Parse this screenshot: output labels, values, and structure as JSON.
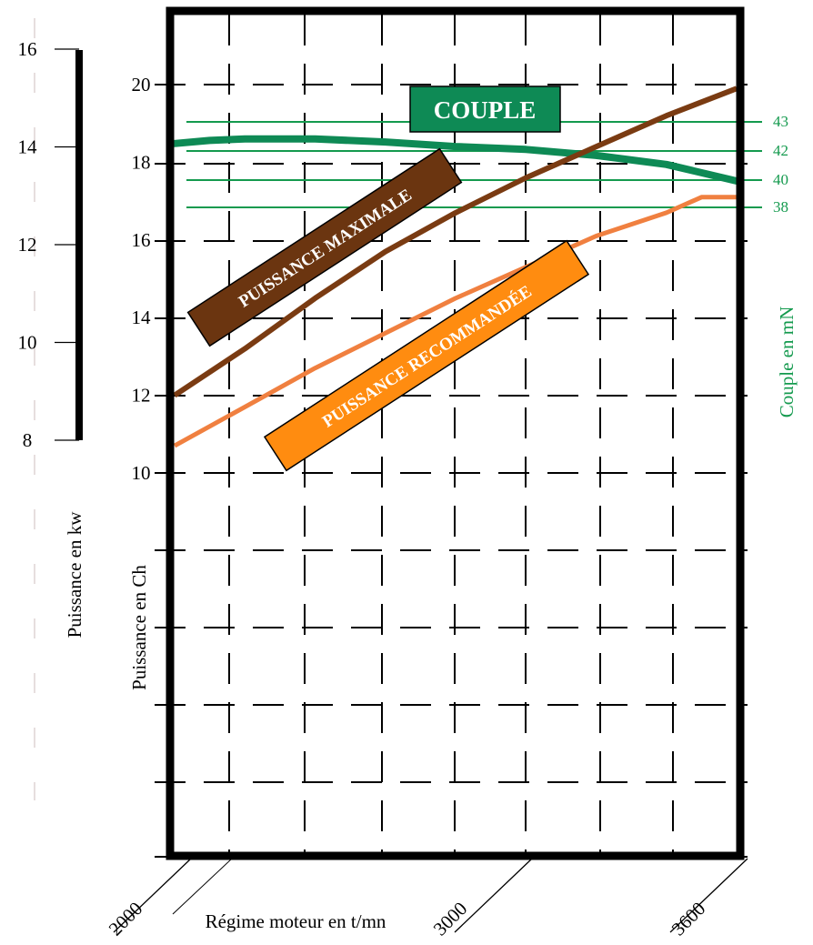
{
  "chart_data": {
    "type": "line",
    "title": "",
    "xlabel": "Régime moteur en t/mn",
    "x_ticks": [
      "2000",
      "3000",
      "3600"
    ],
    "xlim": [
      2000,
      3600
    ],
    "ylabel": "Puissance en Ch",
    "ylim": [
      10,
      20
    ],
    "y_ticks": [
      "10",
      "12",
      "14",
      "16",
      "18",
      "20"
    ],
    "ylabel_kw": "Puissance en kw",
    "ylim_kw": [
      8,
      16
    ],
    "y_ticks_kw": [
      "8",
      "10",
      "12",
      "14",
      "16"
    ],
    "ylabel_right": "Couple en mN",
    "y_ticks_right": [
      "38",
      "40",
      "42",
      "43"
    ],
    "grid": true,
    "colors": {
      "couple": "#0e8a55",
      "maximale": "#7a3b12",
      "recommandee": "#f08040",
      "torque_lines": "#149a4e",
      "label_couple_bg": "#0e8a55",
      "label_max_bg": "#6b3510",
      "label_rec_bg": "#ff8c10"
    },
    "series": [
      {
        "name": "PUISSANCE MAXIMALE",
        "axis": "Ch",
        "x": [
          2000,
          2200,
          2400,
          2600,
          2800,
          3000,
          3200,
          3400,
          3600
        ],
        "values": [
          12.0,
          13.2,
          14.5,
          15.7,
          16.7,
          17.6,
          18.4,
          19.2,
          19.9
        ]
      },
      {
        "name": "PUISSANCE RECOMMANDÉE",
        "axis": "Ch",
        "x": [
          2000,
          2200,
          2400,
          2600,
          2800,
          3000,
          3200,
          3400,
          3500,
          3600
        ],
        "values": [
          10.7,
          11.7,
          12.7,
          13.6,
          14.5,
          15.3,
          16.1,
          16.7,
          17.1,
          17.1
        ]
      },
      {
        "name": "COUPLE",
        "axis": "mN",
        "x": [
          2000,
          2100,
          2200,
          2400,
          2600,
          2800,
          3000,
          3200,
          3400,
          3600
        ],
        "values": [
          42.5,
          42.7,
          42.8,
          42.8,
          42.6,
          42.3,
          42.1,
          41.7,
          41.1,
          40.0
        ]
      }
    ]
  }
}
